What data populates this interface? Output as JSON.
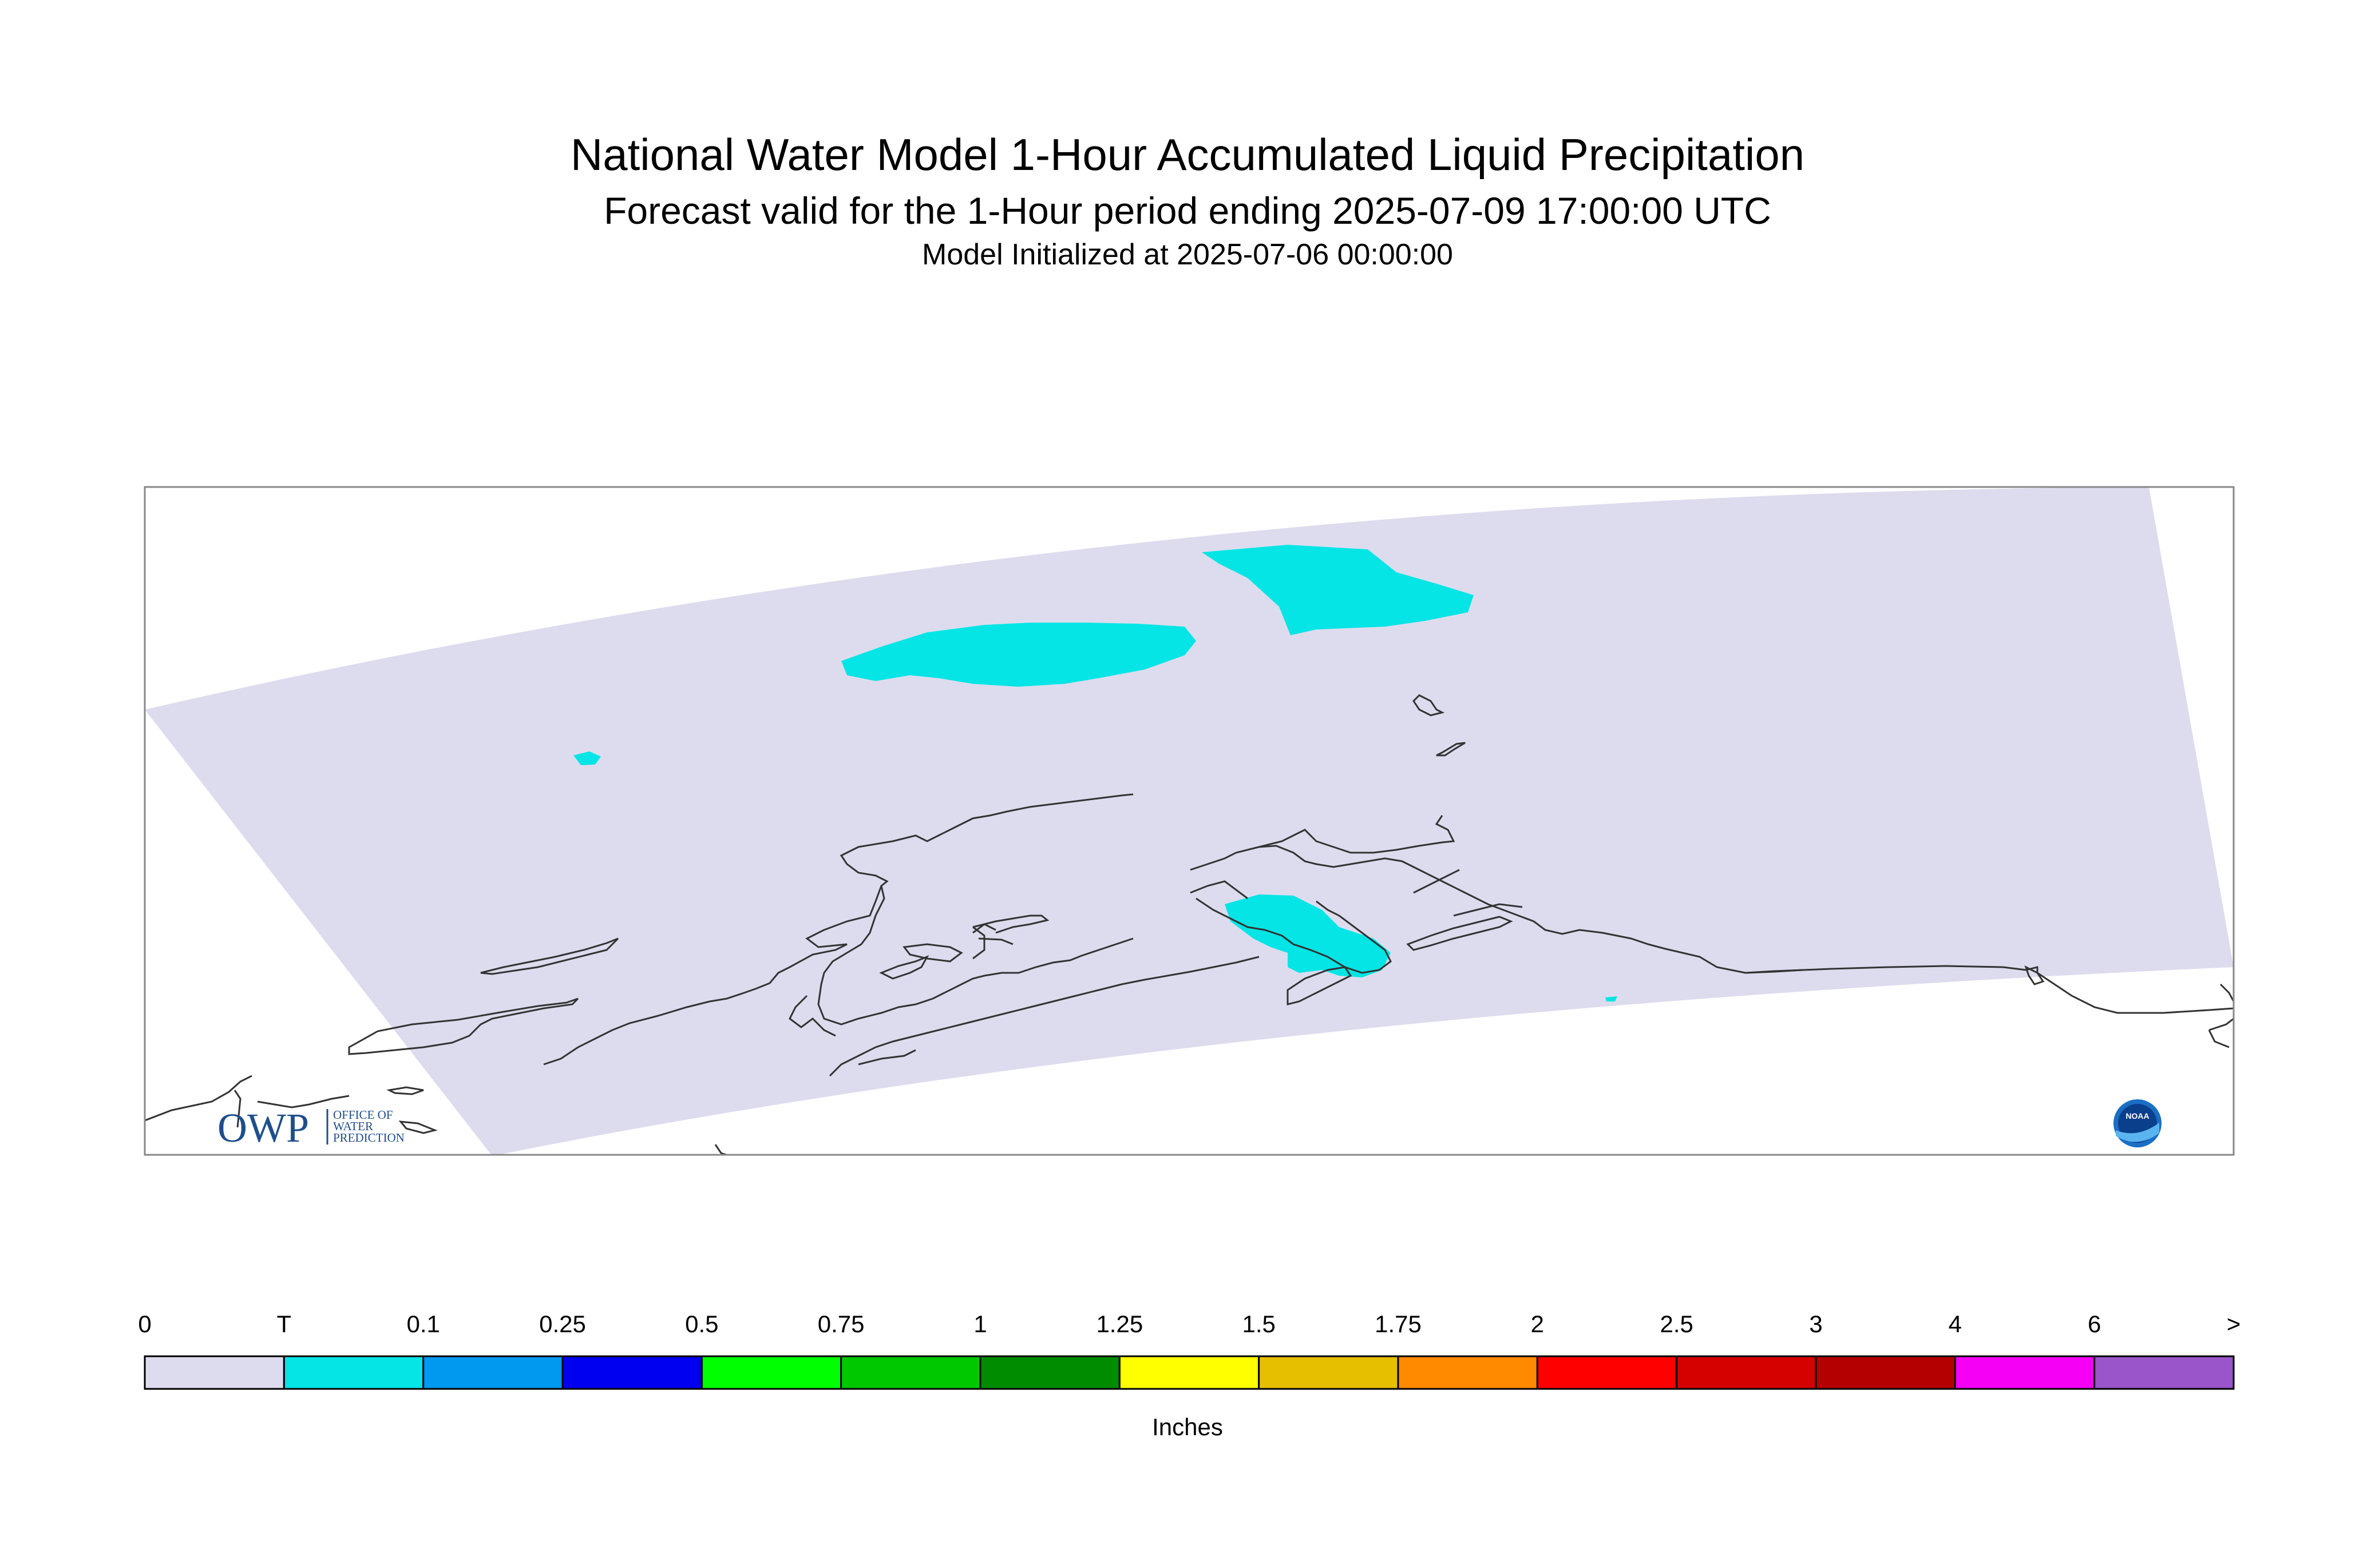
{
  "header": {
    "title": "National Water Model 1-Hour Accumulated Liquid Precipitation",
    "subtitle": "Forecast valid for the 1-Hour period ending 2025-07-09 17:00:00 UTC",
    "init": "Model Initialized at 2025-07-06 00:00:00"
  },
  "map": {
    "domain_fill": "#dcdcee",
    "precip_fill": "#05e5e5",
    "coast_color": "#333333"
  },
  "logos": {
    "owp_mark": "OWP",
    "owp_line1": "OFFICE OF",
    "owp_line2": "WATER",
    "owp_line3": "PREDICTION",
    "noaa_text": "NOAA",
    "noaa_icon": "noaa-logo-icon"
  },
  "legend": {
    "labels": [
      "0",
      "T",
      "0.1",
      "0.25",
      "0.5",
      "0.75",
      "1",
      "1.25",
      "1.5",
      "1.75",
      "2",
      "2.5",
      "3",
      "4",
      "6",
      ">"
    ],
    "colors": [
      "#dcdcee",
      "#05e5e5",
      "#0099f0",
      "#0000f0",
      "#00ff00",
      "#00c800",
      "#008c00",
      "#ffff00",
      "#e5bf00",
      "#ff8a00",
      "#ff0000",
      "#d50000",
      "#b50000",
      "#f500f5",
      "#9955c9"
    ],
    "units": "Inches"
  }
}
